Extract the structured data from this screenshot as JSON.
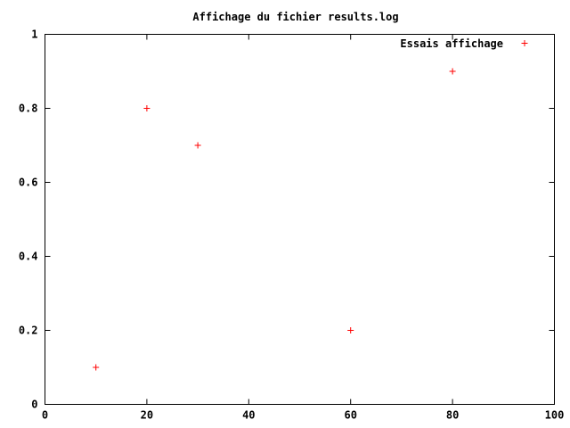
{
  "chart_data": {
    "type": "scatter",
    "title": "Affichage du fichier results.log",
    "xlabel": "",
    "ylabel": "",
    "xlim": [
      0,
      100
    ],
    "ylim": [
      0,
      1
    ],
    "x_ticks": [
      0,
      20,
      40,
      60,
      80,
      100
    ],
    "y_ticks": [
      0,
      0.2,
      0.4,
      0.6,
      0.8,
      1
    ],
    "x_tick_labels": [
      "0",
      "20",
      "40",
      "60",
      "80",
      "100"
    ],
    "y_tick_labels": [
      "0",
      "0.2",
      "0.4",
      "0.6",
      "0.8",
      "1"
    ],
    "grid": false,
    "legend_position": "top-right",
    "series": [
      {
        "name": "Essais affichage",
        "color": "#ff0000",
        "marker": "plus",
        "points": [
          {
            "x": 10,
            "y": 0.1
          },
          {
            "x": 20,
            "y": 0.8
          },
          {
            "x": 30,
            "y": 0.7
          },
          {
            "x": 60,
            "y": 0.2
          },
          {
            "x": 80,
            "y": 0.9
          }
        ]
      }
    ]
  }
}
